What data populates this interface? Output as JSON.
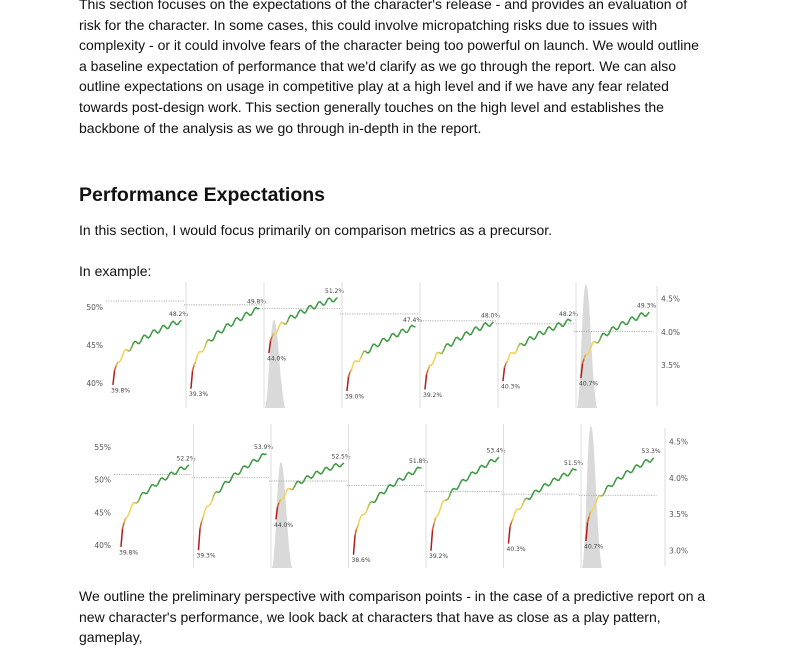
{
  "document": {
    "intro": "This section focuses on the expectations of the character's release - and provides an evaluation of risk for the character. In some cases, this could involve micropatching risks due to issues with complexity - or it could involve fears of the character being too powerful on launch. We would outline a baseline expectation of performance that we'd clarify as we go through the report. We can also outline expectations on usage in competitive play  at a high level and if we have any fear related towards post-design work. This section generally touches on the high level and establishes the backbone of the analysis as we go through in-depth in the report.",
    "heading": "Performance Expectations",
    "lead": "In this section, I would focus primarily on comparison metrics as a precursor.",
    "example_label": "In example:",
    "outro": "We outline the preliminary perspective with comparison points - in the case of a predictive report on a new character's performance, we look back at characters that have as close as a play pattern, gameplay,"
  },
  "colors": {
    "low": "#b31b1b",
    "mid": "#f2d35a",
    "high": "#3f9a45",
    "ref_line": "#aaaaaa",
    "density": "#d9d9d9",
    "divider": "#dddddd"
  },
  "chart_data": [
    {
      "type": "line",
      "left_ticks": [
        "50%",
        "45%",
        "40%"
      ],
      "left_ylim": [
        38,
        52
      ],
      "right_ticks": [
        "4.5%",
        "4.0%",
        "3.5%"
      ],
      "right_ylim": [
        3.0,
        4.6
      ],
      "series": [
        {
          "start": 39.8,
          "start_label": "39.8%",
          "end": 48.2,
          "end_label": "48.2%",
          "ref": 50.8,
          "density": false
        },
        {
          "start": 39.3,
          "start_label": "39.3%",
          "end": 49.8,
          "end_label": "49.8%",
          "ref": 50.3,
          "density": false
        },
        {
          "start": 44.0,
          "start_label": "44.0%",
          "end": 51.2,
          "end_label": "51.2%",
          "ref": 49.8,
          "density": true
        },
        {
          "start": 39.0,
          "start_label": "39.0%",
          "end": 47.4,
          "end_label": "47.4%",
          "ref": 49.1,
          "density": false
        },
        {
          "start": 39.2,
          "start_label": "39.2%",
          "end": 48.0,
          "end_label": "48.0%",
          "ref": 48.2,
          "density": false
        },
        {
          "start": 40.3,
          "start_label": "40.3%",
          "end": 48.2,
          "end_label": "48.2%",
          "ref": 47.8,
          "density": false
        },
        {
          "start": 40.7,
          "start_label": "40.7%",
          "end": 49.3,
          "end_label": "49.3%",
          "ref": 46.8,
          "density": true
        }
      ]
    },
    {
      "type": "line",
      "left_ticks": [
        "55%",
        "50%",
        "45%",
        "40%"
      ],
      "left_ylim": [
        38,
        57
      ],
      "right_ticks": [
        "4.5%",
        "4.0%",
        "3.5%",
        "3.0%"
      ],
      "right_ylim": [
        2.9,
        4.6
      ],
      "series": [
        {
          "start": 39.8,
          "start_label": "39.8%",
          "end": 52.2,
          "end_label": "52.2%",
          "ref": 50.8,
          "density": false
        },
        {
          "start": 39.3,
          "start_label": "39.3%",
          "end": 53.9,
          "end_label": "53.9%",
          "ref": 50.3,
          "density": false
        },
        {
          "start": 44.0,
          "start_label": "44.0%",
          "end": 52.5,
          "end_label": "52.5%",
          "ref": 49.8,
          "density": true
        },
        {
          "start": 38.6,
          "start_label": "38.6%",
          "end": 51.8,
          "end_label": "51.8%",
          "ref": 49.1,
          "density": false
        },
        {
          "start": 39.2,
          "start_label": "39.2%",
          "end": 53.4,
          "end_label": "53.4%",
          "ref": 48.2,
          "density": false
        },
        {
          "start": 40.3,
          "start_label": "40.3%",
          "end": 51.5,
          "end_label": "51.5%",
          "ref": 47.8,
          "density": false
        },
        {
          "start": 40.7,
          "start_label": "40.7%",
          "end": 53.3,
          "end_label": "53.3%",
          "ref": 47.6,
          "density": true
        }
      ]
    }
  ]
}
